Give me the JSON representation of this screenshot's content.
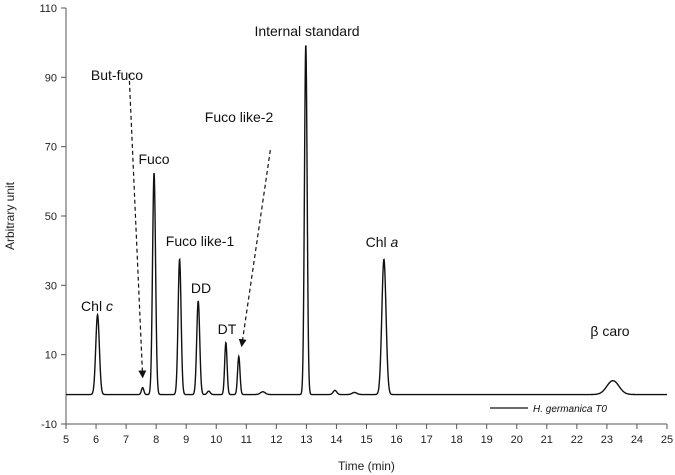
{
  "chart_data": {
    "type": "line",
    "xlabel": "Time  (min)",
    "ylabel": "Arbitrary unit",
    "xlim": [
      5,
      25
    ],
    "ylim": [
      -10,
      110
    ],
    "xticks": [
      "5",
      "6",
      "7",
      "8",
      "9",
      "10",
      "11",
      "12",
      "13",
      "14",
      "15",
      "16",
      "17",
      "18",
      "19",
      "20",
      "21",
      "22",
      "23",
      "24",
      "25"
    ],
    "yticks": [
      "-10",
      "10",
      "30",
      "50",
      "70",
      "90",
      "110"
    ],
    "grid": false,
    "legend": {
      "position": "bottom-right",
      "entries": [
        "H. germanica T0"
      ]
    },
    "series": [
      {
        "name": "H. germanica T0",
        "baseline": -1.5,
        "peaks": [
          {
            "t": 6.05,
            "h": 23,
            "w": 0.06
          },
          {
            "t": 7.55,
            "h": 2,
            "w": 0.04
          },
          {
            "t": 7.93,
            "h": 64,
            "w": 0.05
          },
          {
            "t": 8.78,
            "h": 39,
            "w": 0.05
          },
          {
            "t": 9.4,
            "h": 27,
            "w": 0.05
          },
          {
            "t": 9.75,
            "h": 1,
            "w": 0.05
          },
          {
            "t": 10.32,
            "h": 15,
            "w": 0.04
          },
          {
            "t": 10.75,
            "h": 11,
            "w": 0.04
          },
          {
            "t": 11.55,
            "h": 0.8,
            "w": 0.08
          },
          {
            "t": 12.98,
            "h": 101,
            "w": 0.045
          },
          {
            "t": 13.95,
            "h": 1.2,
            "w": 0.06
          },
          {
            "t": 14.6,
            "h": 0.6,
            "w": 0.08
          },
          {
            "t": 15.58,
            "h": 39,
            "w": 0.07
          },
          {
            "t": 23.2,
            "h": 4,
            "w": 0.2
          }
        ]
      }
    ],
    "annotations": [
      {
        "id": "chl-c",
        "label": "Chl ",
        "label_italic": "c",
        "peak_t": 6.05
      },
      {
        "id": "but-fuco",
        "label": "But-fuco",
        "arrow": "dashed",
        "from": [
          7.1,
          91
        ],
        "to": [
          7.55,
          2
        ]
      },
      {
        "id": "fuco",
        "label": "Fuco",
        "peak_t": 7.93
      },
      {
        "id": "fuco-like-1",
        "label": "Fuco like-1",
        "peak_t": 8.78
      },
      {
        "id": "dd",
        "label": "DD",
        "peak_t": 9.4
      },
      {
        "id": "dt",
        "label": "DT",
        "peak_t": 10.32
      },
      {
        "id": "fuco-like-2",
        "label": "Fuco like-2",
        "arrow": "dashed",
        "from": [
          11.8,
          69
        ],
        "to": [
          10.85,
          11
        ]
      },
      {
        "id": "internal-standard",
        "label": "Internal standard",
        "peak_t": 12.98
      },
      {
        "id": "chl-a",
        "label": "Chl ",
        "label_italic": "a",
        "peak_t": 15.58
      },
      {
        "id": "beta-caro",
        "label": "β caro",
        "peak_t": 23.2
      }
    ]
  }
}
